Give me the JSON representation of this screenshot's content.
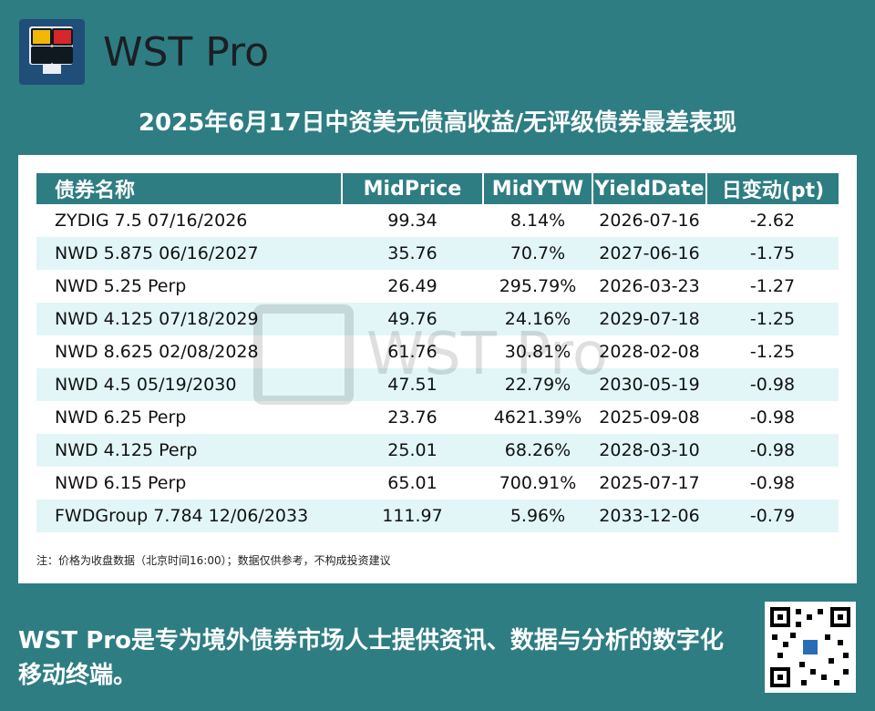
{
  "brand": "WST Pro",
  "title": "2025年6月17日中资美元债高收益/无评级债券最差表现",
  "table": {
    "headers": [
      "债券名称",
      "MidPrice",
      "MidYTW",
      "YieldDate",
      "日变动(pt)"
    ],
    "rows": [
      [
        "ZYDIG 7.5 07/16/2026",
        "99.34",
        "8.14%",
        "2026-07-16",
        "-2.62"
      ],
      [
        "NWD 5.875 06/16/2027",
        "35.76",
        "70.7%",
        "2027-06-16",
        "-1.75"
      ],
      [
        "NWD 5.25 Perp",
        "26.49",
        "295.79%",
        "2026-03-23",
        "-1.27"
      ],
      [
        "NWD 4.125 07/18/2029",
        "49.76",
        "24.16%",
        "2029-07-18",
        "-1.25"
      ],
      [
        "NWD 8.625 02/08/2028",
        "61.76",
        "30.81%",
        "2028-02-08",
        "-1.25"
      ],
      [
        "NWD 4.5 05/19/2030",
        "47.51",
        "22.79%",
        "2030-05-19",
        "-0.98"
      ],
      [
        "NWD 6.25 Perp",
        "23.76",
        "4621.39%",
        "2025-09-08",
        "-0.98"
      ],
      [
        "NWD 4.125 Perp",
        "25.01",
        "68.26%",
        "2028-03-10",
        "-0.98"
      ],
      [
        "NWD 6.15 Perp",
        "65.01",
        "700.91%",
        "2025-07-17",
        "-0.98"
      ],
      [
        "FWDGroup 7.784 12/06/2033",
        "111.97",
        "5.96%",
        "2033-12-06",
        "-0.79"
      ]
    ]
  },
  "note": "注：价格为收盘数据（北京时间16:00）；数据仅供参考，不构成投资建议",
  "footer": "WST Pro是专为境外债券市场人士提供资讯、数据与分析的数字化移动终端。",
  "watermark": "WST Pro",
  "colors": {
    "background": "#2e7d82",
    "header_fill": "#2e7d82",
    "row_alt": "#e2f6f7",
    "logo_bg": "#1f4e79"
  }
}
